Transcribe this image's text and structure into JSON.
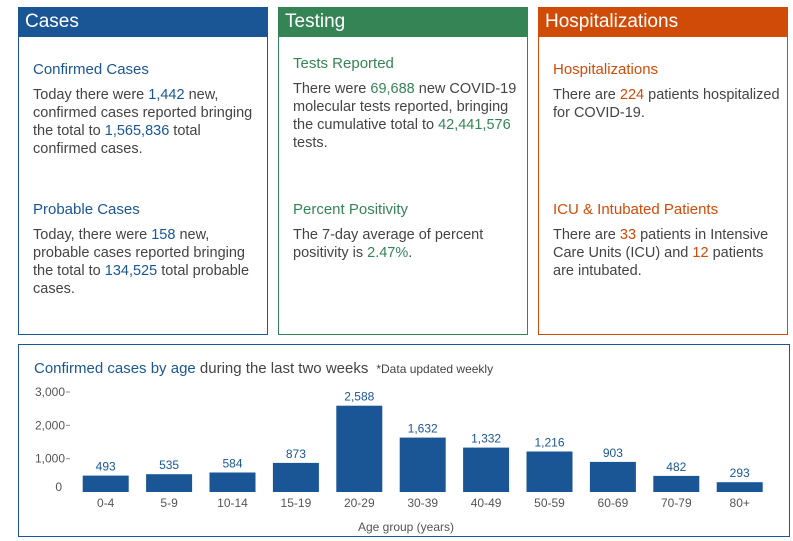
{
  "cases": {
    "header": "Cases",
    "confirmed": {
      "title": "Confirmed Cases",
      "t1": "Today there were ",
      "new_count": "1,442",
      "t2": " new, confirmed cases reported bringing the total to ",
      "total": "1,565,836",
      "t3": " total confirmed cases."
    },
    "probable": {
      "title": "Probable Cases",
      "t1": "Today, there were ",
      "new_count": "158",
      "t2": " new, probable cases reported bringing the total to ",
      "total": "134,525",
      "t3": " total probable cases."
    }
  },
  "testing": {
    "header": "Testing",
    "tests": {
      "title": "Tests Reported",
      "t1": "There were ",
      "new_count": "69,688",
      "t2": " new COVID-19 molecular tests reported, bringing the cumulative total to ",
      "total": "42,441,576",
      "t3": " tests."
    },
    "positivity": {
      "title": "Percent Positivity",
      "t1": "The 7-day average of percent positivity is ",
      "value": "2.47%",
      "t2": "."
    }
  },
  "hospitalizations": {
    "header": "Hospitalizations",
    "hosp": {
      "title": "Hospitalizations",
      "t1": "There are ",
      "count": "224",
      "t2": " patients hospitalized for COVID-19."
    },
    "icu": {
      "title": "ICU & Intubated Patients",
      "t1": "There are ",
      "icu_count": "33",
      "t2": " patients in Intensive Care Units (ICU) and ",
      "intubated_count": "12",
      "t3": " patients are intubated."
    }
  },
  "colors": {
    "cases": "#1a5696",
    "testing": "#358456",
    "hospitalizations": "#d14b08",
    "bar": "#1a5696",
    "body_text": "#444444",
    "axis_text": "#555555"
  },
  "chart_data": {
    "type": "bar",
    "title_prefix": "Confirmed cases by age",
    "title_suffix": " during the last two weeks",
    "note": "*Data updated weekly",
    "xlabel": "Age group (years)",
    "ylabel": "",
    "categories": [
      "0-4",
      "5-9",
      "10-14",
      "15-19",
      "20-29",
      "30-39",
      "40-49",
      "50-59",
      "60-69",
      "70-79",
      "80+"
    ],
    "values": [
      493,
      535,
      584,
      873,
      2588,
      1632,
      1332,
      1216,
      903,
      482,
      293
    ],
    "value_labels": [
      "493",
      "535",
      "584",
      "873",
      "2,588",
      "1,632",
      "1,332",
      "1,216",
      "903",
      "482",
      "293"
    ],
    "yticks": [
      0,
      1000,
      2000,
      3000
    ],
    "ytick_labels": [
      "0",
      "1,000",
      "2,000",
      "3,000"
    ],
    "ylim": [
      0,
      3000
    ],
    "grid": false,
    "legend": "none"
  }
}
